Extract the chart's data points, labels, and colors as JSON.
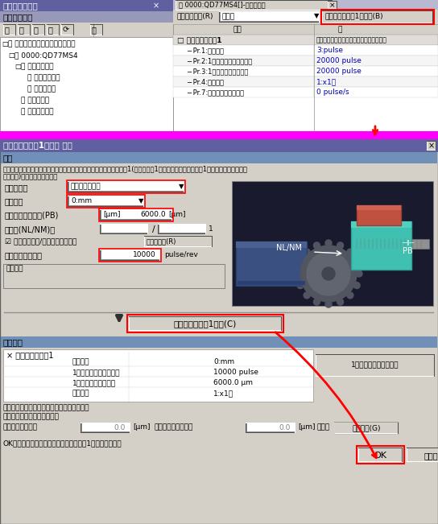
{
  "bg_color": "#c0c0c0",
  "magenta_color": "#ff00ff",
  "title_top_left": "ナビゲーション",
  "tab_title": "0000:QD77MS4[]-パラメータ",
  "filter_label": "表示フィルタ(R)",
  "filter_value": "全表示",
  "btn_export_top": "基本パラメータ1の算出(B)",
  "col1_header": "項目",
  "col2_header": "軸",
  "param_group": "基本パラメータ1",
  "param_col2_header": "機械設備や適用モータに合わせてシステム",
  "params_top": [
    [
      "Pr.1:単位設定",
      "3:pulse"
    ],
    [
      "Pr.2:1回転あたりのパルス数",
      "20000 pulse"
    ],
    [
      "Pr.3:1回転あたりの移動量",
      "20000 pulse"
    ],
    [
      "Pr.4:単位倍率",
      "1:x1倍"
    ],
    [
      "Pr.7:始動時バイアス速度",
      "0 pulse/s"
    ]
  ],
  "dialog_title": "基本パラメータ1の算出 軸１",
  "section_input": "入力",
  "desc_text": "機械構成を選択し機械設備元を入力することにより、基本パラメータ1(単位設定、1回転あたりのパルス数、1回転あたりの移動量、",
  "desc_text2": "単位倍率)を自動設定します。",
  "machine_label": "機械構成：",
  "machine_value": "ボールネジ水平",
  "unit_label": "単位設定",
  "unit_value": "0:mm",
  "ballscrew_label": "ボールネジリード(PB)",
  "ballscrew_value": "6000.0",
  "ballscrew_unit": "[μm]",
  "ratio_label": "減速比(NL/NM)＝",
  "encoder_label": "エンコーダ分解能",
  "encoder_value": "10000",
  "encoder_unit": "pulse/rev",
  "range_label": "設定範囲",
  "checkbox_label": "☑ 減速比を歯数/直径で設定する。",
  "ratio_btn": "減速比設定(R)",
  "calc_btn": "基本パラメータ1算出(C)",
  "section_result": "計算結果",
  "result_group_label": "× 基本パラメータ1",
  "result_rows": [
    [
      "単位設定",
      "0:mm"
    ],
    [
      "1回転あたりのパルス数",
      "10000 pulse"
    ],
    [
      "1回転あたりの移動量",
      "6000.0 μm"
    ],
    [
      "単位倍率",
      "1:x1倍"
    ]
  ],
  "pulse_btn": "1パルスあたりの移動量",
  "calc_note1": "計算の結果、移動量に誤差は発生しません。",
  "calc_note2": "上記計算結果を適用すると、",
  "move_label": "動かしたい移動量",
  "move_unit": "[μm]",
  "error_label": "あたりの誤差は、約",
  "error_unit": "[μm]",
  "result_label": "です。",
  "error_btn": "誤差計算(G)",
  "ok_note": "OKボタンを押下すると、基本パラメータ1に反映します。",
  "ok_btn": "OK",
  "cancel_btn": "キャンセル",
  "blue_color": "#0000bb",
  "red_color": "#cc0000",
  "panel_bg": "#d4d0c8",
  "titlebar_color": "#6060a0",
  "section_bar_color": "#7090b8",
  "white": "#ffffff",
  "mid_gray": "#808080",
  "dark_gray": "#404040",
  "light_gray": "#e0ddd8"
}
